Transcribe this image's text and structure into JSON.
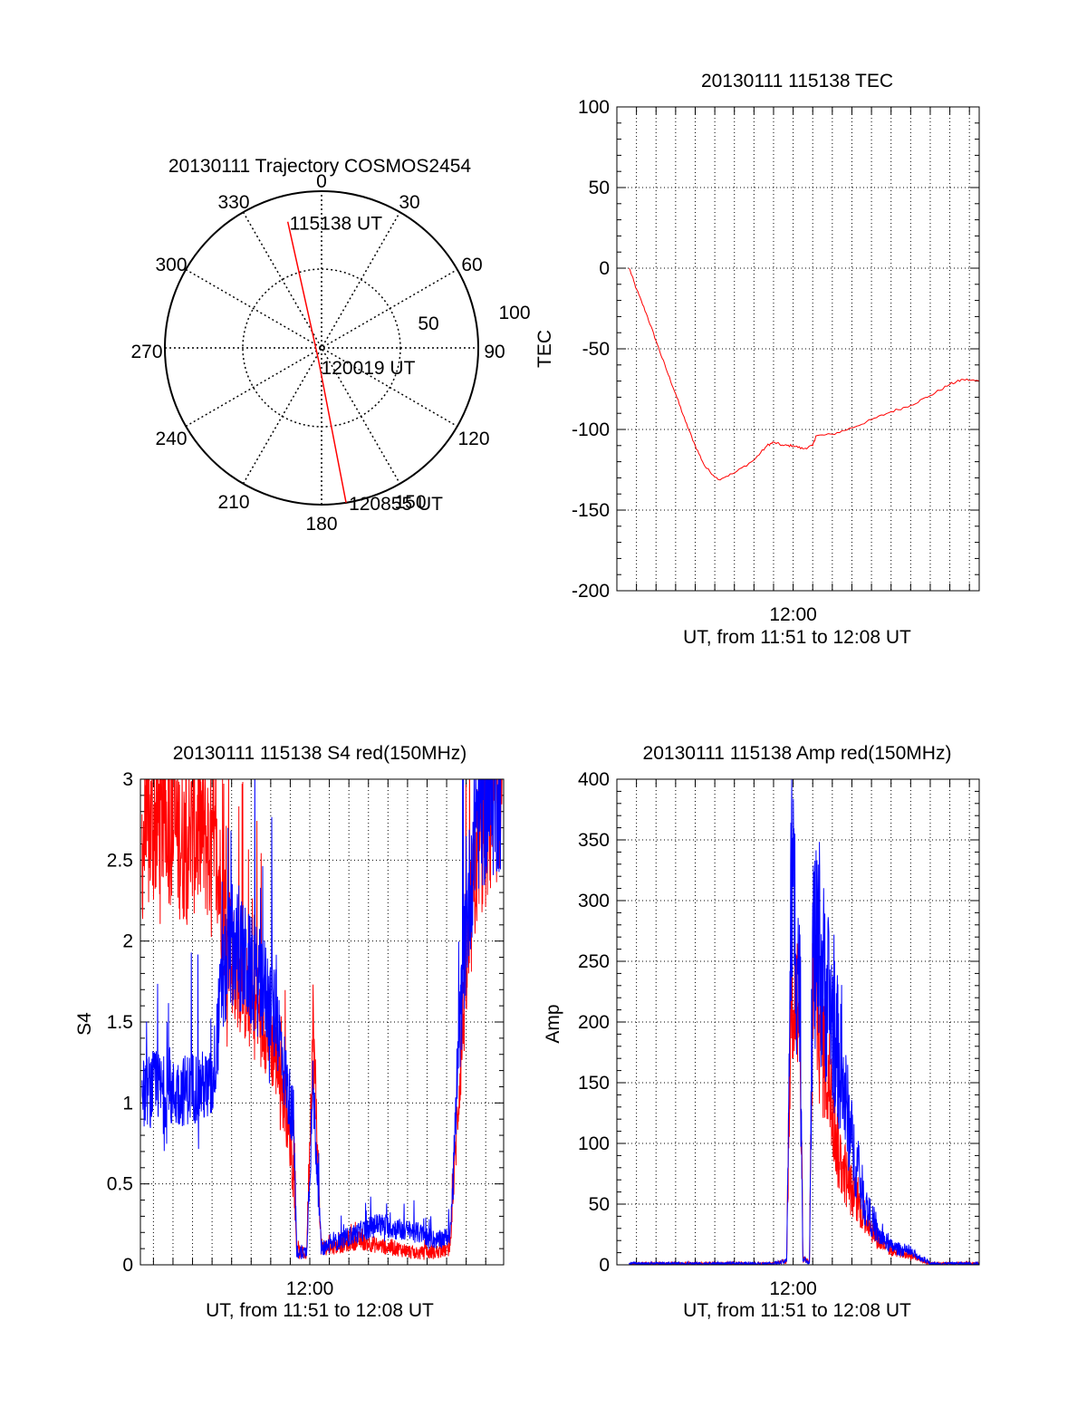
{
  "chart_data": [
    {
      "type": "polar",
      "title": "20130111 Trajectory COSMOS2454",
      "angle_labels": [
        "0",
        "30",
        "60",
        "90",
        "120",
        "150",
        "180",
        "210",
        "240",
        "270",
        "300",
        "330"
      ],
      "radial_labels": [
        "50",
        "100"
      ],
      "trajectory": {
        "color": "#ff0000",
        "points": [
          {
            "az": 345,
            "el": 15,
            "label": "115138 UT"
          },
          {
            "az": 195,
            "el": 83,
            "label": "120019 UT"
          },
          {
            "az": 171,
            "el": 0,
            "label": "120855 UT"
          }
        ]
      }
    },
    {
      "type": "line",
      "title": "20130111 115138 TEC",
      "xlabel": "UT, from 11:51 to 12:08 UT",
      "ylabel": "TEC",
      "xlim": [
        "11:51:00",
        "12:09:30"
      ],
      "ylim": [
        -200,
        100
      ],
      "yticks": [
        "100",
        "50",
        "0",
        "-50",
        "-100",
        "-150",
        "-200"
      ],
      "xticks": [
        "12:00"
      ],
      "grid": true,
      "series": [
        {
          "color": "#ff0000",
          "points": [
            [
              "11:51:38",
              0
            ],
            [
              "11:52:00",
              -13
            ],
            [
              "11:52:30",
              -28
            ],
            [
              "11:53:00",
              -45
            ],
            [
              "11:53:30",
              -62
            ],
            [
              "11:54:00",
              -78
            ],
            [
              "11:54:30",
              -95
            ],
            [
              "11:55:00",
              -110
            ],
            [
              "11:55:30",
              -123
            ],
            [
              "11:56:10",
              -131
            ],
            [
              "11:57:00",
              -127
            ],
            [
              "11:58:00",
              -119
            ],
            [
              "11:58:40",
              -110
            ],
            [
              "11:59:00",
              -108
            ],
            [
              "11:59:30",
              -110
            ],
            [
              "12:00:00",
              -110
            ],
            [
              "12:00:30",
              -112
            ],
            [
              "12:01:00",
              -110
            ],
            [
              "12:01:10",
              -104
            ],
            [
              "12:02:00",
              -103
            ],
            [
              "12:03:00",
              -99
            ],
            [
              "12:04:00",
              -94
            ],
            [
              "12:05:00",
              -89
            ],
            [
              "12:06:00",
              -85
            ],
            [
              "12:07:00",
              -79
            ],
            [
              "12:08:00",
              -72
            ],
            [
              "12:08:40",
              -69
            ],
            [
              "12:09:30",
              -70
            ]
          ]
        }
      ]
    },
    {
      "type": "line",
      "title": "20130111 115138 S4 red(150MHz)",
      "xlabel": "UT, from 11:51 to 12:08 UT",
      "ylabel": "S4",
      "xlim": [
        "11:51:20",
        "12:09:55"
      ],
      "ylim": [
        0,
        3
      ],
      "yticks": [
        "3",
        "2.5",
        "2",
        "1.5",
        "1",
        "0.5",
        "0"
      ],
      "xticks": [
        "12:00"
      ],
      "grid": true,
      "series": [
        {
          "color": "#ff0000",
          "points": [
            [
              "11:51:25",
              2.6
            ],
            [
              "11:52:30",
              2.8
            ],
            [
              "11:53:30",
              2.6
            ],
            [
              "11:54:30",
              2.7
            ],
            [
              "11:55:20",
              2.4
            ],
            [
              "11:56:00",
              1.9
            ],
            [
              "11:57:00",
              1.6
            ],
            [
              "11:57:40",
              1.5
            ],
            [
              "11:58:20",
              1.25
            ],
            [
              "11:58:50",
              0.9
            ],
            [
              "11:59:10",
              0.6
            ],
            [
              "11:59:20",
              0.08
            ],
            [
              "11:59:50",
              0.07
            ],
            [
              "12:00:10",
              1.5
            ],
            [
              "12:00:35",
              0.1
            ],
            [
              "12:01:30",
              0.12
            ],
            [
              "12:02:30",
              0.15
            ],
            [
              "12:03:30",
              0.12
            ],
            [
              "12:04:30",
              0.1
            ],
            [
              "12:05:30",
              0.07
            ],
            [
              "12:06:30",
              0.08
            ],
            [
              "12:07:10",
              0.1
            ],
            [
              "12:07:50",
              1.5
            ],
            [
              "12:08:30",
              2.5
            ],
            [
              "12:09:50",
              3.0
            ]
          ]
        },
        {
          "color": "#0000ff",
          "points": [
            [
              "11:51:25",
              1.05
            ],
            [
              "11:52:00",
              1.1
            ],
            [
              "11:53:00",
              1.05
            ],
            [
              "11:54:00",
              1.1
            ],
            [
              "11:55:00",
              1.1
            ],
            [
              "11:55:30",
              1.7
            ],
            [
              "11:56:00",
              2.0
            ],
            [
              "11:57:00",
              1.8
            ],
            [
              "11:57:40",
              1.7
            ],
            [
              "11:58:20",
              1.5
            ],
            [
              "11:58:50",
              1.1
            ],
            [
              "11:59:10",
              0.9
            ],
            [
              "11:59:20",
              0.08
            ],
            [
              "11:59:50",
              0.08
            ],
            [
              "12:00:10",
              1.1
            ],
            [
              "12:00:35",
              0.1
            ],
            [
              "12:01:30",
              0.15
            ],
            [
              "12:02:30",
              0.2
            ],
            [
              "12:03:30",
              0.25
            ],
            [
              "12:04:30",
              0.22
            ],
            [
              "12:05:30",
              0.2
            ],
            [
              "12:06:30",
              0.15
            ],
            [
              "12:07:10",
              0.18
            ],
            [
              "12:07:50",
              1.8
            ],
            [
              "12:08:30",
              2.8
            ],
            [
              "12:09:50",
              3.0
            ]
          ]
        }
      ]
    },
    {
      "type": "line",
      "title": "20130111 115138 Amp red(150MHz)",
      "xlabel": "UT, from 11:51 to 12:08 UT",
      "ylabel": "Amp",
      "xlim": [
        "11:51:00",
        "12:09:30"
      ],
      "ylim": [
        0,
        400
      ],
      "yticks": [
        "400",
        "350",
        "300",
        "250",
        "200",
        "150",
        "100",
        "50",
        "0"
      ],
      "xticks": [
        "12:00"
      ],
      "grid": true,
      "series": [
        {
          "color": "#ff0000",
          "points": [
            [
              "11:51:38",
              1
            ],
            [
              "11:59:00",
              1
            ],
            [
              "11:59:40",
              3
            ],
            [
              "11:59:55",
              250
            ],
            [
              "12:00:20",
              200
            ],
            [
              "12:00:30",
              5
            ],
            [
              "12:00:50",
              2
            ],
            [
              "12:01:00",
              230
            ],
            [
              "12:01:40",
              170
            ],
            [
              "12:02:20",
              90
            ],
            [
              "12:03:00",
              60
            ],
            [
              "12:03:40",
              40
            ],
            [
              "12:04:20",
              20
            ],
            [
              "12:05:00",
              12
            ],
            [
              "12:06:00",
              8
            ],
            [
              "12:06:50",
              2
            ],
            [
              "12:07:00",
              1
            ],
            [
              "12:09:30",
              1
            ]
          ]
        },
        {
          "color": "#0000ff",
          "points": [
            [
              "11:51:38",
              1
            ],
            [
              "11:59:00",
              1
            ],
            [
              "11:59:40",
              3
            ],
            [
              "11:59:55",
              320
            ],
            [
              "12:00:20",
              230
            ],
            [
              "12:00:30",
              5
            ],
            [
              "12:00:50",
              2
            ],
            [
              "12:01:00",
              260
            ],
            [
              "12:01:40",
              230
            ],
            [
              "12:02:20",
              170
            ],
            [
              "12:03:00",
              100
            ],
            [
              "12:03:40",
              50
            ],
            [
              "12:04:20",
              25
            ],
            [
              "12:05:00",
              15
            ],
            [
              "12:06:00",
              10
            ],
            [
              "12:06:50",
              3
            ],
            [
              "12:07:00",
              1
            ],
            [
              "12:09:30",
              1
            ]
          ]
        }
      ]
    }
  ]
}
